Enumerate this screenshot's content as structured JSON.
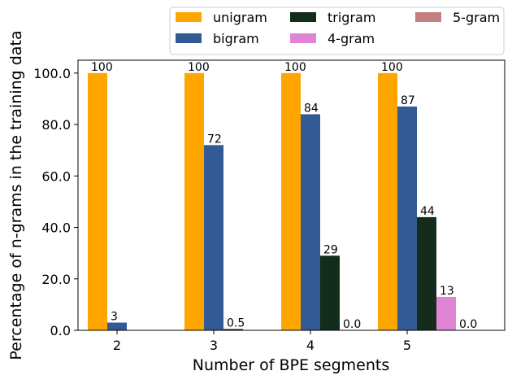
{
  "chart_data": {
    "type": "bar",
    "title": "",
    "xlabel": "Number of BPE segments",
    "ylabel": "Percentage of n-grams in the training data",
    "categories": [
      "2",
      "3",
      "4",
      "5"
    ],
    "ylim": [
      0,
      105
    ],
    "yticks": [
      0,
      20,
      40,
      60,
      80,
      100
    ],
    "ytick_labels": [
      "0.0",
      "20.0",
      "40.0",
      "60.0",
      "80.0",
      "100.0"
    ],
    "grid": false,
    "legend_position": "top-right, above plot",
    "series": [
      {
        "name": "unigram",
        "color": "#FFA500",
        "values": [
          100,
          100,
          100,
          100
        ],
        "labels": [
          "100",
          "100",
          "100",
          "100"
        ]
      },
      {
        "name": "bigram",
        "color": "#345A96",
        "values": [
          3,
          72,
          84,
          87
        ],
        "labels": [
          "3",
          "72",
          "84",
          "87"
        ]
      },
      {
        "name": "trigram",
        "color": "#142C1A",
        "values": [
          null,
          0.5,
          29,
          44
        ],
        "labels": [
          "",
          "0.5",
          "29",
          "44"
        ]
      },
      {
        "name": "4-gram",
        "color": "#E085D6",
        "values": [
          null,
          null,
          0.0,
          13
        ],
        "labels": [
          "",
          "",
          "0.0",
          "13"
        ]
      },
      {
        "name": "5-gram",
        "color": "#C27F80",
        "values": [
          null,
          null,
          null,
          0.0
        ],
        "labels": [
          "",
          "",
          "",
          "0.0"
        ]
      }
    ]
  }
}
